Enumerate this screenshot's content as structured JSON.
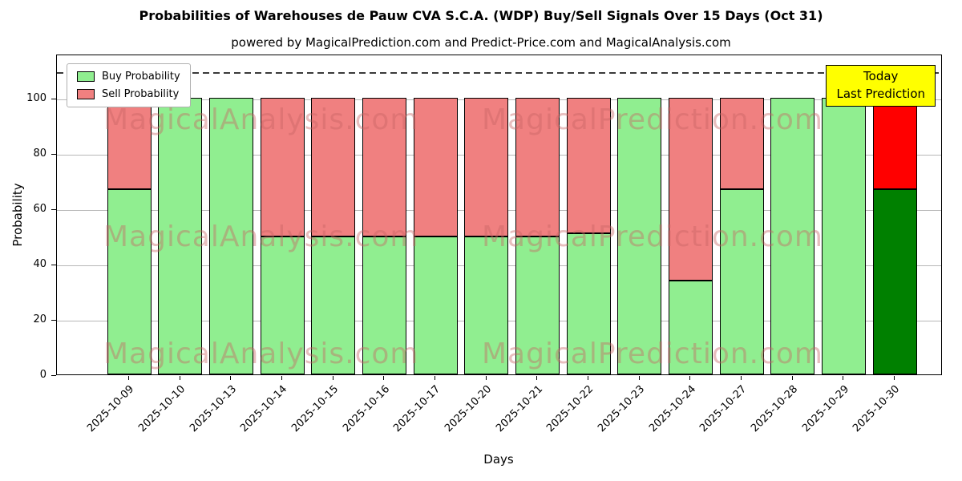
{
  "subtitle": "powered by MagicalPrediction.com and Predict-Price.com and MagicalAnalysis.com",
  "watermarks": [
    "MagicalAnalysis.com",
    "MagicalPrediction.com"
  ],
  "annotation": {
    "line1": "Today",
    "line2": "Last Prediction",
    "bg": "#ffff00"
  },
  "colors": {
    "buy": "#90ee90",
    "sell": "#f08080",
    "today_buy": "#008000",
    "today_sell": "#ff0000",
    "bar_edge": "#000000",
    "grid": "#b8b8b8",
    "dashed_line": "#3a3a3a"
  },
  "chart_data": {
    "type": "bar",
    "stacked": true,
    "title": "Probabilities of Warehouses de Pauw CVA S.C.A. (WDP) Buy/Sell Signals Over 15 Days (Oct 31)",
    "xlabel": "Days",
    "ylabel": "Probability",
    "categories": [
      "2025-10-09",
      "2025-10-10",
      "2025-10-13",
      "2025-10-14",
      "2025-10-15",
      "2025-10-16",
      "2025-10-17",
      "2025-10-20",
      "2025-10-21",
      "2025-10-22",
      "2025-10-23",
      "2025-10-24",
      "2025-10-27",
      "2025-10-28",
      "2025-10-29",
      "2025-10-30"
    ],
    "series": [
      {
        "name": "Buy Probability",
        "values": [
          67,
          100,
          100,
          50,
          50,
          50,
          50,
          50,
          50,
          51,
          100,
          34,
          67,
          100,
          100,
          67
        ]
      },
      {
        "name": "Sell Probability",
        "values": [
          33,
          0,
          0,
          50,
          50,
          50,
          50,
          50,
          50,
          49,
          0,
          66,
          33,
          0,
          0,
          33
        ]
      }
    ],
    "yticks": [
      0,
      20,
      40,
      60,
      80,
      100
    ],
    "ylim": [
      0,
      116
    ],
    "reference_line_y": 110,
    "highlight_last_bar": true,
    "grid": true,
    "legend_position": "upper left"
  }
}
